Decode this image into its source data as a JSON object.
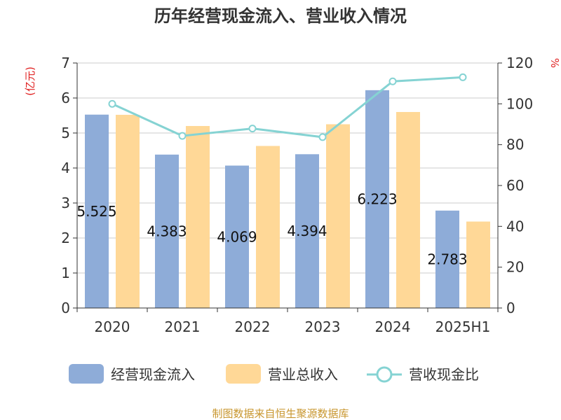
{
  "chart_data": {
    "type": "bar",
    "title": "历年经营现金流入、营业收入情况",
    "categories": [
      "2020",
      "2021",
      "2022",
      "2023",
      "2024",
      "2025H1"
    ],
    "series": [
      {
        "name": "经营现金流入",
        "kind": "bar",
        "axis": "left",
        "color": "#8eacd8",
        "values": [
          5.525,
          4.383,
          4.069,
          4.394,
          6.223,
          2.783
        ]
      },
      {
        "name": "营业总收入",
        "kind": "bar",
        "axis": "left",
        "color": "#ffd897",
        "values": [
          5.52,
          5.2,
          4.63,
          5.25,
          5.6,
          2.47
        ]
      },
      {
        "name": "营收现金比",
        "kind": "line",
        "axis": "right",
        "color": "#85d3d3",
        "values": [
          100,
          84.3,
          87.9,
          83.7,
          111,
          113
        ]
      }
    ],
    "data_labels": [
      "5.525",
      "4.383",
      "4.069",
      "4.394",
      "6.223",
      "2.783"
    ],
    "y_left": {
      "unit": "(亿元)",
      "lim": [
        0,
        7
      ],
      "ticks": [
        0,
        1,
        2,
        3,
        4,
        5,
        6,
        7
      ]
    },
    "y_right": {
      "unit": "%",
      "lim": [
        0,
        120
      ],
      "ticks": [
        0,
        20,
        40,
        60,
        80,
        100,
        120
      ]
    },
    "grid": true,
    "legend_position": "bottom",
    "source": "制图数据来自恒生聚源数据库"
  }
}
